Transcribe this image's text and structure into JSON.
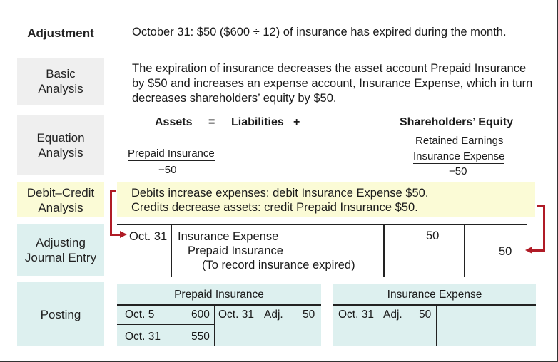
{
  "labels": {
    "adjustment": "Adjustment",
    "basic": "Basic\nAnalysis",
    "equation": "Equation\nAnalysis",
    "debit_credit": "Debit–Credit\nAnalysis",
    "adjusting": "Adjusting\nJournal Entry",
    "posting": "Posting"
  },
  "adjustment_text": "October 31: $50 ($600 ÷ 12) of insurance has expired during the month.",
  "basic_lines": [
    "The expiration of insurance decreases the asset account Prepaid Insurance",
    "by $50 and increases an expense account, Insurance Expense, which in turn",
    "decreases shareholders’ equity by $50."
  ],
  "equation": {
    "assets": "Assets",
    "equals": "=",
    "liabilities": "Liabilities",
    "plus": "+",
    "equity": "Shareholders’ Equity",
    "retained": "Retained Earnings",
    "asset_account": "Prepaid Insurance",
    "asset_amount": "−50",
    "equity_account": "Insurance Expense",
    "equity_amount": "−50"
  },
  "debit_credit_lines": [
    "Debits increase expenses: debit Insurance Expense $50.",
    "Credits decrease assets: credit Prepaid Insurance $50."
  ],
  "journal": {
    "date": "Oct. 31",
    "debit_account": "Insurance Expense",
    "credit_account": "Prepaid Insurance",
    "explanation": "(To record insurance expired)",
    "debit_amount": "50",
    "credit_amount": "50"
  },
  "posting": {
    "prepaid": {
      "title": "Prepaid Insurance",
      "left_rows": [
        {
          "date": "Oct. 5",
          "amount": "600"
        },
        {
          "date": "Oct. 31",
          "amount": "550"
        }
      ],
      "right_rows": [
        {
          "date": "Oct. 31",
          "tag": "Adj.",
          "amount": "50"
        }
      ]
    },
    "expense": {
      "title": "Insurance Expense",
      "left_rows": [
        {
          "date": "Oct. 31",
          "tag": "Adj.",
          "amount": "50"
        }
      ]
    }
  },
  "colors": {
    "label_gray": "#efefef",
    "debit_credit_yellow": "#fbfbd6",
    "teal": "#ddf0ef",
    "arrow_red": "#b01b26"
  }
}
